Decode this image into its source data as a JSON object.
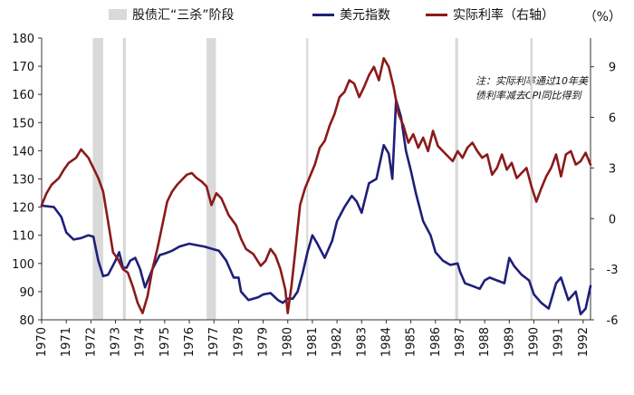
{
  "chart_data": {
    "type": "line",
    "title": "",
    "legend": [
      {
        "name": "股债汇“三杀”阶段",
        "kind": "shaded",
        "color": "#d9d9d9"
      },
      {
        "name": "美元指数",
        "kind": "line",
        "color": "#1f1f7a"
      },
      {
        "name": "实际利率（右轴）",
        "kind": "line",
        "color": "#8b1a1a"
      }
    ],
    "unit_right": "（%）",
    "note": "注：实际利率通过10年美债利率减去CPI同比得到",
    "x_ticks": [
      "1970",
      "1971",
      "1972",
      "1973",
      "1974",
      "1975",
      "1976",
      "1977",
      "1978",
      "1979",
      "1980",
      "1981",
      "1982",
      "1983",
      "1984",
      "1985",
      "1986",
      "1987",
      "1988",
      "1989",
      "1990",
      "1991",
      "1992"
    ],
    "xlim": [
      1970,
      1992.3
    ],
    "y_left": {
      "ticks": [
        "80",
        "90",
        "100",
        "110",
        "120",
        "130",
        "140",
        "150",
        "160",
        "170",
        "180"
      ],
      "ylim": [
        80,
        180
      ]
    },
    "y_right": {
      "ticks": [
        "-6",
        "-3",
        "0",
        "3",
        "6",
        "9"
      ],
      "ylim": [
        -6,
        10.7
      ]
    },
    "shaded_periods": [
      {
        "start": 1972.08,
        "end": 1972.5
      },
      {
        "start": 1973.3,
        "end": 1973.42
      },
      {
        "start": 1976.7,
        "end": 1977.08
      },
      {
        "start": 1980.75,
        "end": 1980.83
      },
      {
        "start": 1986.8,
        "end": 1986.92
      },
      {
        "start": 1989.85,
        "end": 1989.95
      }
    ],
    "series": [
      {
        "name": "美元指数",
        "axis": "left",
        "color": "#1f1f7a",
        "x": [
          1970.0,
          1970.5,
          1970.8,
          1971.0,
          1971.3,
          1971.6,
          1971.9,
          1972.1,
          1972.3,
          1972.5,
          1972.7,
          1973.0,
          1973.15,
          1973.3,
          1973.45,
          1973.6,
          1973.8,
          1974.0,
          1974.2,
          1974.5,
          1974.8,
          1975.0,
          1975.3,
          1975.6,
          1976.0,
          1976.3,
          1976.6,
          1977.0,
          1977.2,
          1977.5,
          1977.8,
          1978.0,
          1978.1,
          1978.4,
          1978.8,
          1979.0,
          1979.3,
          1979.6,
          1979.8,
          1980.0,
          1980.2,
          1980.4,
          1980.6,
          1980.8,
          1981.0,
          1981.2,
          1981.5,
          1981.8,
          1982.0,
          1982.3,
          1982.6,
          1982.8,
          1983.0,
          1983.3,
          1983.6,
          1983.9,
          1984.1,
          1984.25,
          1984.4,
          1984.6,
          1984.8,
          1985.0,
          1985.2,
          1985.5,
          1985.8,
          1986.0,
          1986.3,
          1986.6,
          1986.9,
          1987.0,
          1987.2,
          1987.5,
          1987.8,
          1988.0,
          1988.2,
          1988.5,
          1988.8,
          1989.0,
          1989.2,
          1989.5,
          1989.8,
          1990.0,
          1990.3,
          1990.6,
          1990.9,
          1991.1,
          1991.4,
          1991.7,
          1991.9,
          1992.1,
          1992.3
        ],
        "values": [
          120.5,
          120,
          116.5,
          111,
          108.5,
          109,
          110,
          109.5,
          101,
          95.5,
          96,
          101,
          104,
          98.5,
          98.5,
          101,
          102,
          98,
          91.5,
          98,
          103,
          103.5,
          104.5,
          106,
          107,
          106.5,
          106,
          105,
          104.5,
          101,
          95,
          95,
          90,
          87,
          88,
          89,
          89.5,
          87,
          86,
          87.5,
          87.5,
          90,
          96.5,
          104,
          110,
          107,
          102,
          108,
          115,
          120,
          124,
          122,
          118,
          128.5,
          130,
          142,
          139,
          130,
          158,
          152,
          140,
          133,
          125,
          115,
          110,
          104,
          101,
          99.5,
          100,
          97,
          93,
          92,
          91,
          94,
          95,
          94,
          93,
          102,
          99,
          96,
          94,
          89,
          86,
          84,
          93,
          95,
          87,
          90,
          82,
          84,
          92
        ]
      },
      {
        "name": "实际利率（右轴）",
        "axis": "right",
        "color": "#8b1a1a",
        "x": [
          1970.0,
          1970.2,
          1970.4,
          1970.7,
          1970.9,
          1971.1,
          1971.4,
          1971.6,
          1971.9,
          1972.1,
          1972.3,
          1972.5,
          1972.7,
          1972.9,
          1973.1,
          1973.3,
          1973.5,
          1973.7,
          1973.9,
          1974.1,
          1974.3,
          1974.5,
          1974.7,
          1974.9,
          1975.1,
          1975.3,
          1975.5,
          1975.7,
          1975.9,
          1976.1,
          1976.3,
          1976.5,
          1976.7,
          1976.9,
          1977.1,
          1977.3,
          1977.6,
          1977.9,
          1978.1,
          1978.3,
          1978.6,
          1978.9,
          1979.1,
          1979.3,
          1979.5,
          1979.7,
          1979.9,
          1980.0,
          1980.15,
          1980.3,
          1980.5,
          1980.7,
          1980.9,
          1981.1,
          1981.3,
          1981.5,
          1981.7,
          1981.9,
          1982.1,
          1982.3,
          1982.5,
          1982.7,
          1982.9,
          1983.1,
          1983.3,
          1983.5,
          1983.7,
          1983.9,
          1984.1,
          1984.3,
          1984.5,
          1984.7,
          1984.9,
          1985.1,
          1985.3,
          1985.5,
          1985.7,
          1985.9,
          1986.1,
          1986.3,
          1986.5,
          1986.7,
          1986.9,
          1987.1,
          1987.3,
          1987.5,
          1987.7,
          1987.9,
          1988.1,
          1988.3,
          1988.5,
          1988.7,
          1988.9,
          1989.1,
          1989.3,
          1989.5,
          1989.7,
          1989.9,
          1990.1,
          1990.3,
          1990.5,
          1990.7,
          1990.9,
          1991.1,
          1991.3,
          1991.5,
          1991.7,
          1991.9,
          1992.1,
          1992.3
        ],
        "values": [
          0.8,
          1.5,
          2.0,
          2.4,
          2.9,
          3.3,
          3.6,
          4.1,
          3.6,
          3.0,
          2.4,
          1.6,
          -0.2,
          -2.0,
          -2.4,
          -3.0,
          -3.2,
          -4.0,
          -5.0,
          -5.6,
          -4.6,
          -3.0,
          -1.8,
          -0.4,
          1.0,
          1.6,
          2.0,
          2.3,
          2.6,
          2.7,
          2.4,
          2.2,
          1.9,
          0.8,
          1.5,
          1.2,
          0.2,
          -0.4,
          -1.2,
          -1.8,
          -2.1,
          -2.8,
          -2.5,
          -1.8,
          -2.2,
          -3.0,
          -4.2,
          -5.6,
          -4.0,
          -2.0,
          0.8,
          1.8,
          2.5,
          3.2,
          4.2,
          4.6,
          5.5,
          6.2,
          7.2,
          7.5,
          8.2,
          8.0,
          7.2,
          7.8,
          8.5,
          9.0,
          8.2,
          9.5,
          9.0,
          7.8,
          6.2,
          5.5,
          4.5,
          5.0,
          4.2,
          4.8,
          4.0,
          5.2,
          4.3,
          4.0,
          3.7,
          3.4,
          4.0,
          3.6,
          4.2,
          4.5,
          4.0,
          3.6,
          3.8,
          2.6,
          3.0,
          3.8,
          2.9,
          3.3,
          2.4,
          2.7,
          3.0,
          1.9,
          1.0,
          1.8,
          2.5,
          3.0,
          3.8,
          2.5,
          3.8,
          4.0,
          3.2,
          3.4,
          3.9,
          3.2
        ]
      }
    ]
  }
}
